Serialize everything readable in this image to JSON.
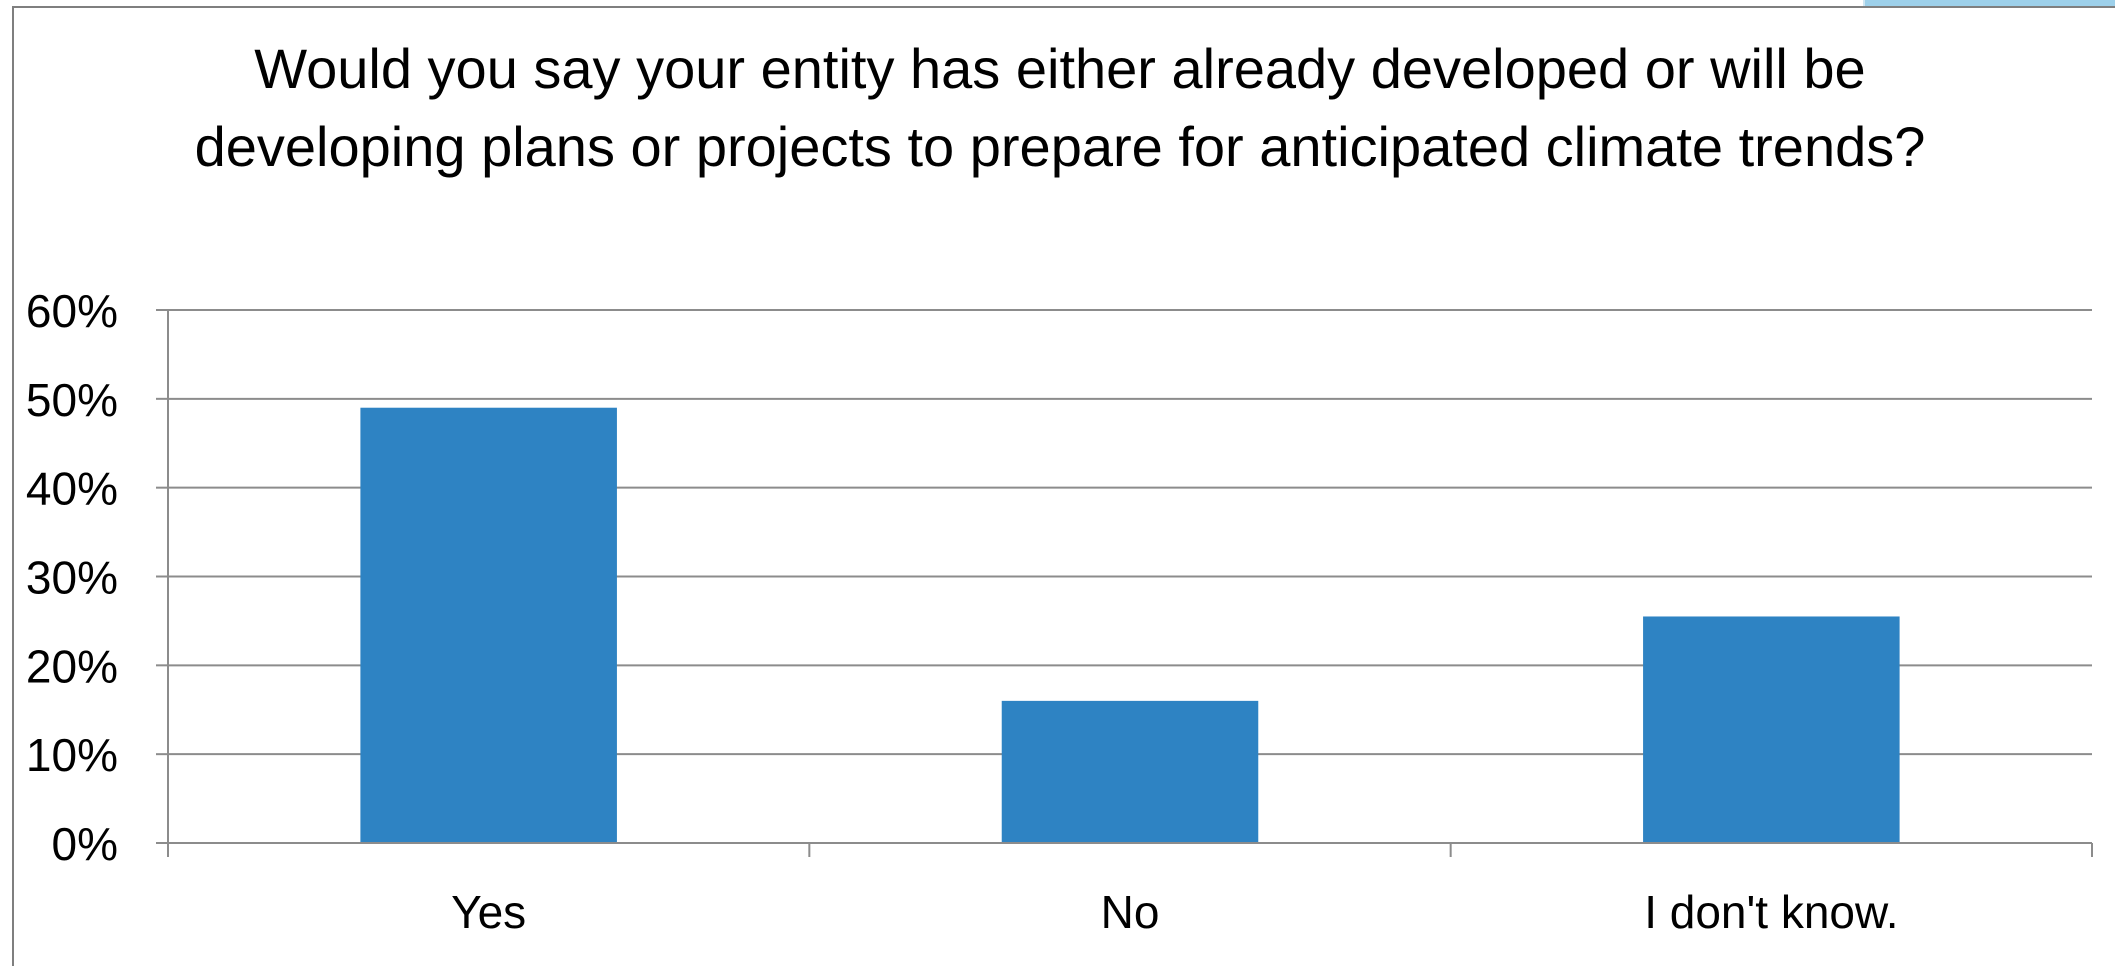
{
  "chart_data": {
    "type": "bar",
    "title": "Would you say your entity has either already developed or will be developing plans or projects to prepare for anticipated climate trends?",
    "categories": [
      "Yes",
      "No",
      "I don't know."
    ],
    "values": [
      49,
      16,
      25.5
    ],
    "ylim": [
      0,
      60
    ],
    "yticks": [
      "0%",
      "10%",
      "20%",
      "30%",
      "40%",
      "50%",
      "60%"
    ],
    "ytick_values": [
      0,
      10,
      20,
      30,
      40,
      50,
      60
    ],
    "xlabel": "",
    "ylabel": "",
    "grid": true,
    "legend": "none",
    "bar_color": "#2e83c3",
    "grid_color": "#8c8c8c"
  }
}
